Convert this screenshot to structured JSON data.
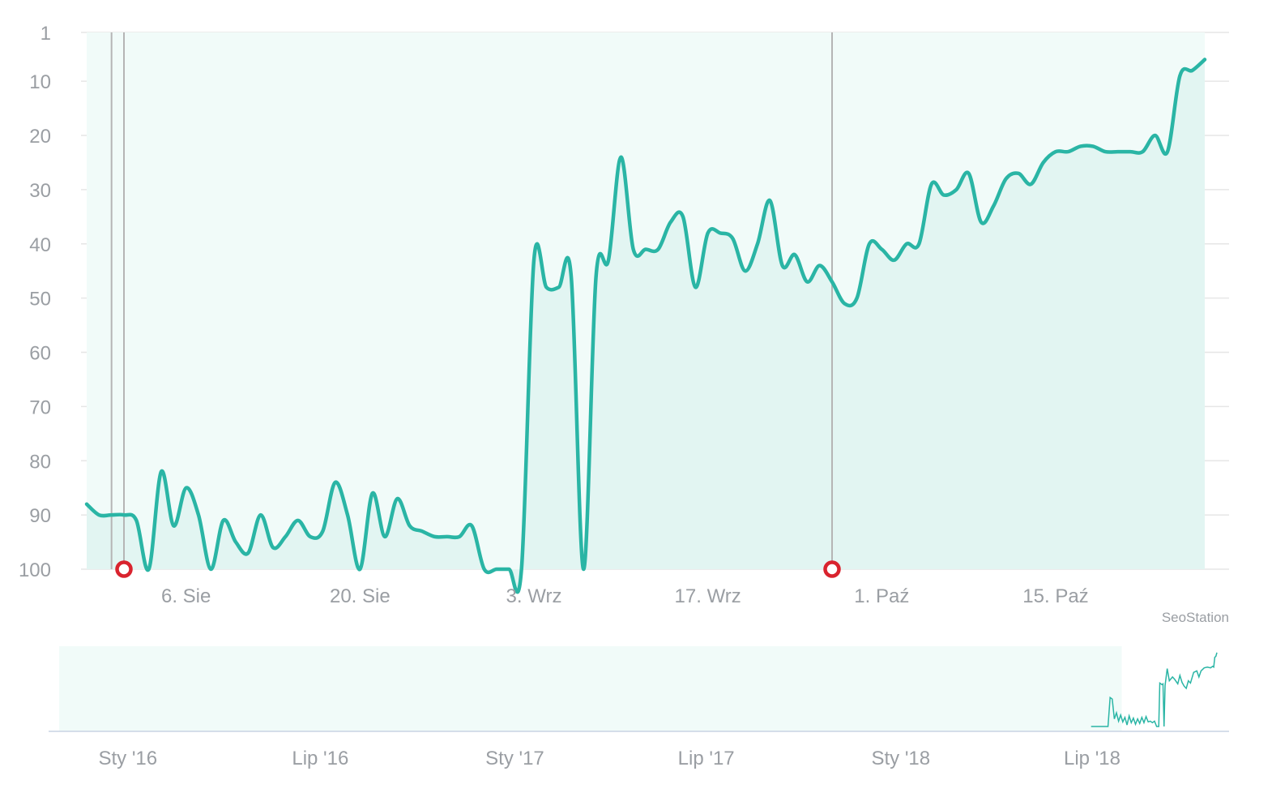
{
  "credit": "SeoStation",
  "colors": {
    "line": "#2ab5a5",
    "fill": "#e2f5f2",
    "navigator_fill": "#f1fbf9",
    "grid": "#e6e6e6",
    "marker": "#d9232e",
    "tick_text": "#9a9ea3",
    "plot_line": "#b5b5b5"
  },
  "chart_data": [
    {
      "type": "line",
      "title": "",
      "xlabel": "",
      "ylabel": "",
      "y_reversed": true,
      "ylim": [
        1,
        100
      ],
      "y_ticks": [
        1,
        10,
        20,
        30,
        40,
        50,
        60,
        70,
        80,
        90,
        100
      ],
      "xlim": [
        "2018-07-29",
        "2018-10-27"
      ],
      "x_ticks": [
        {
          "date": "2018-08-06",
          "label": "6. Sie"
        },
        {
          "date": "2018-08-20",
          "label": "20. Sie"
        },
        {
          "date": "2018-09-03",
          "label": "3. Wrz"
        },
        {
          "date": "2018-09-17",
          "label": "17. Wrz"
        },
        {
          "date": "2018-10-01",
          "label": "1. Paź"
        },
        {
          "date": "2018-10-15",
          "label": "15. Paź"
        }
      ],
      "grid": true,
      "area_fill": true,
      "series": [
        {
          "points": [
            [
              "2018-07-29",
              88
            ],
            [
              "2018-07-30",
              90
            ],
            [
              "2018-07-31",
              90
            ],
            [
              "2018-08-01",
              90
            ],
            [
              "2018-08-02",
              91
            ],
            [
              "2018-08-03",
              100
            ],
            [
              "2018-08-04",
              82
            ],
            [
              "2018-08-05",
              92
            ],
            [
              "2018-08-06",
              85
            ],
            [
              "2018-08-07",
              90
            ],
            [
              "2018-08-08",
              100
            ],
            [
              "2018-08-09",
              91
            ],
            [
              "2018-08-10",
              95
            ],
            [
              "2018-08-11",
              97
            ],
            [
              "2018-08-12",
              90
            ],
            [
              "2018-08-13",
              96
            ],
            [
              "2018-08-14",
              94
            ],
            [
              "2018-08-15",
              91
            ],
            [
              "2018-08-16",
              94
            ],
            [
              "2018-08-17",
              93
            ],
            [
              "2018-08-18",
              84
            ],
            [
              "2018-08-19",
              90
            ],
            [
              "2018-08-20",
              100
            ],
            [
              "2018-08-21",
              86
            ],
            [
              "2018-08-22",
              94
            ],
            [
              "2018-08-23",
              87
            ],
            [
              "2018-08-24",
              92
            ],
            [
              "2018-08-25",
              93
            ],
            [
              "2018-08-26",
              94
            ],
            [
              "2018-08-27",
              94
            ],
            [
              "2018-08-28",
              94
            ],
            [
              "2018-08-29",
              92
            ],
            [
              "2018-08-30",
              100
            ],
            [
              "2018-08-31",
              100
            ],
            [
              "2018-09-01",
              100
            ],
            [
              "2018-09-02",
              100
            ],
            [
              "2018-09-03",
              43
            ],
            [
              "2018-09-04",
              48
            ],
            [
              "2018-09-05",
              48
            ],
            [
              "2018-09-06",
              46
            ],
            [
              "2018-09-07",
              100
            ],
            [
              "2018-09-08",
              46
            ],
            [
              "2018-09-09",
              43
            ],
            [
              "2018-09-10",
              24
            ],
            [
              "2018-09-11",
              41
            ],
            [
              "2018-09-12",
              41
            ],
            [
              "2018-09-13",
              41
            ],
            [
              "2018-09-14",
              36
            ],
            [
              "2018-09-15",
              35
            ],
            [
              "2018-09-16",
              48
            ],
            [
              "2018-09-17",
              38
            ],
            [
              "2018-09-18",
              38
            ],
            [
              "2018-09-19",
              39
            ],
            [
              "2018-09-20",
              45
            ],
            [
              "2018-09-21",
              40
            ],
            [
              "2018-09-22",
              32
            ],
            [
              "2018-09-23",
              44
            ],
            [
              "2018-09-24",
              42
            ],
            [
              "2018-09-25",
              47
            ],
            [
              "2018-09-26",
              44
            ],
            [
              "2018-09-27",
              47
            ],
            [
              "2018-09-28",
              51
            ],
            [
              "2018-09-29",
              50
            ],
            [
              "2018-09-30",
              40
            ],
            [
              "2018-10-01",
              41
            ],
            [
              "2018-10-02",
              43
            ],
            [
              "2018-10-03",
              40
            ],
            [
              "2018-10-04",
              40
            ],
            [
              "2018-10-05",
              29
            ],
            [
              "2018-10-06",
              31
            ],
            [
              "2018-10-07",
              30
            ],
            [
              "2018-10-08",
              27
            ],
            [
              "2018-10-09",
              36
            ],
            [
              "2018-10-10",
              33
            ],
            [
              "2018-10-11",
              28
            ],
            [
              "2018-10-12",
              27
            ],
            [
              "2018-10-13",
              29
            ],
            [
              "2018-10-14",
              25
            ],
            [
              "2018-10-15",
              23
            ],
            [
              "2018-10-16",
              23
            ],
            [
              "2018-10-17",
              22
            ],
            [
              "2018-10-18",
              22
            ],
            [
              "2018-10-19",
              23
            ],
            [
              "2018-10-20",
              23
            ],
            [
              "2018-10-21",
              23
            ],
            [
              "2018-10-22",
              23
            ],
            [
              "2018-10-23",
              20
            ],
            [
              "2018-10-24",
              23
            ],
            [
              "2018-10-25",
              9
            ],
            [
              "2018-10-26",
              8
            ],
            [
              "2018-10-27",
              6
            ]
          ]
        }
      ],
      "plot_lines": [
        "2018-07-31",
        "2018-08-01",
        "2018-09-27"
      ],
      "markers": [
        "2018-08-01",
        "2018-09-27"
      ]
    },
    {
      "type": "area",
      "title": "",
      "xlim": [
        "2015-10-28",
        "2018-10-27"
      ],
      "x_ticks": [
        {
          "date": "2016-01-01",
          "label": "Sty '16"
        },
        {
          "date": "2016-07-01",
          "label": "Lip '16"
        },
        {
          "date": "2017-01-01",
          "label": "Sty '17"
        },
        {
          "date": "2017-07-01",
          "label": "Lip '17"
        },
        {
          "date": "2018-01-01",
          "label": "Sty '18"
        },
        {
          "date": "2018-07-01",
          "label": "Lip '18"
        }
      ],
      "selection_range": [
        "2015-10-28",
        "2018-07-29"
      ],
      "series": [
        {
          "points": [
            [
              "2018-06-30",
              100
            ],
            [
              "2018-07-05",
              100
            ],
            [
              "2018-07-12",
              100
            ],
            [
              "2018-07-16",
              100
            ],
            [
              "2018-07-18",
              62
            ],
            [
              "2018-07-20",
              64
            ],
            [
              "2018-07-22",
              90
            ],
            [
              "2018-07-24",
              82
            ],
            [
              "2018-07-26",
              93
            ],
            [
              "2018-07-28",
              85
            ],
            [
              "2018-07-30",
              94
            ],
            [
              "2018-08-01",
              88
            ],
            [
              "2018-08-03",
              98
            ],
            [
              "2018-08-05",
              86
            ],
            [
              "2018-08-07",
              95
            ],
            [
              "2018-08-09",
              89
            ],
            [
              "2018-08-11",
              97
            ],
            [
              "2018-08-13",
              90
            ],
            [
              "2018-08-15",
              96
            ],
            [
              "2018-08-17",
              88
            ],
            [
              "2018-08-19",
              95
            ],
            [
              "2018-08-21",
              87
            ],
            [
              "2018-08-23",
              94
            ],
            [
              "2018-08-25",
              93
            ],
            [
              "2018-08-27",
              95
            ],
            [
              "2018-08-29",
              93
            ],
            [
              "2018-08-31",
              100
            ],
            [
              "2018-09-02",
              100
            ],
            [
              "2018-09-03",
              43
            ],
            [
              "2018-09-05",
              45
            ],
            [
              "2018-09-06",
              44
            ],
            [
              "2018-09-07",
              100
            ],
            [
              "2018-09-08",
              46
            ],
            [
              "2018-09-10",
              24
            ],
            [
              "2018-09-12",
              40
            ],
            [
              "2018-09-15",
              35
            ],
            [
              "2018-09-17",
              38
            ],
            [
              "2018-09-20",
              44
            ],
            [
              "2018-09-22",
              33
            ],
            [
              "2018-09-24",
              42
            ],
            [
              "2018-09-26",
              47
            ],
            [
              "2018-09-28",
              50
            ],
            [
              "2018-09-30",
              40
            ],
            [
              "2018-10-02",
              43
            ],
            [
              "2018-10-05",
              29
            ],
            [
              "2018-10-08",
              27
            ],
            [
              "2018-10-10",
              35
            ],
            [
              "2018-10-12",
              27
            ],
            [
              "2018-10-15",
              23
            ],
            [
              "2018-10-18",
              22
            ],
            [
              "2018-10-21",
              23
            ],
            [
              "2018-10-23",
              21
            ],
            [
              "2018-10-24",
              22
            ],
            [
              "2018-10-25",
              9
            ],
            [
              "2018-10-26",
              8
            ],
            [
              "2018-10-27",
              3
            ]
          ]
        }
      ]
    }
  ]
}
